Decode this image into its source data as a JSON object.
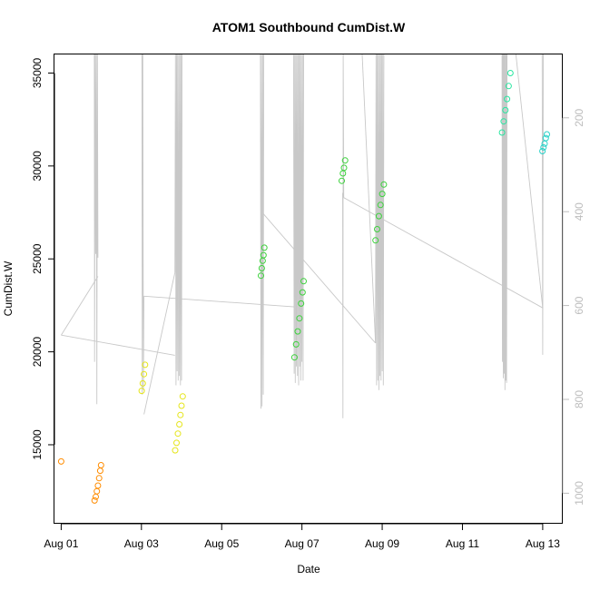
{
  "chart_data": {
    "type": "scatter",
    "title": "ATOM1 Southbound CumDist.W",
    "xlabel": "Date",
    "ylabel": "CumDist.W",
    "x_ticks": [
      "Aug 01",
      "Aug 03",
      "Aug 05",
      "Aug 07",
      "Aug 09",
      "Aug 11",
      "Aug 13"
    ],
    "xlim": [
      "2023-07-31T19:59",
      "2023-08-13T12:00"
    ],
    "ylim": [
      10750,
      36000
    ],
    "y_ticks": [
      15000,
      20000,
      25000,
      30000,
      35000
    ],
    "y2": {
      "ticks": [
        200,
        400,
        600,
        800,
        1000
      ],
      "lim_top": 65,
      "lim_bottom": 1065,
      "inverted": true,
      "color": "#bdbdbd"
    },
    "grid": false,
    "colors": {
      "line": "#c8c8c8",
      "orange": "#ff8c00",
      "yellow": "#e5e51a",
      "green": "#3cd23c",
      "mint": "#28e6a0",
      "cyan": "#28d2c8"
    },
    "series": [
      {
        "color": "orange",
        "x": [
          "2023-08-01T00:00"
        ],
        "y": [
          14100
        ]
      },
      {
        "color": "orange",
        "x": [
          "2023-08-01T20:00",
          "2023-08-01T20:40",
          "2023-08-01T21:20",
          "2023-08-01T22:00",
          "2023-08-01T22:40",
          "2023-08-01T23:20",
          "2023-08-01T23:50"
        ],
        "y": [
          12000,
          12200,
          12500,
          12800,
          13200,
          13600,
          13900
        ]
      },
      {
        "color": "yellow",
        "x": [
          "2023-08-03T00:10",
          "2023-08-03T00:50",
          "2023-08-03T01:30",
          "2023-08-03T02:10"
        ],
        "y": [
          17900,
          18300,
          18800,
          19300
        ]
      },
      {
        "color": "yellow",
        "x": [
          "2023-08-03T20:10",
          "2023-08-03T21:00",
          "2023-08-03T21:50",
          "2023-08-03T22:40",
          "2023-08-03T23:20",
          "2023-08-04T00:00",
          "2023-08-04T00:40"
        ],
        "y": [
          14700,
          15100,
          15600,
          16100,
          16600,
          17100,
          17600
        ]
      },
      {
        "color": "green",
        "x": [
          "2023-08-05T23:30",
          "2023-08-06T00:00",
          "2023-08-06T00:30",
          "2023-08-06T01:00",
          "2023-08-06T01:30"
        ],
        "y": [
          24100,
          24500,
          24900,
          25200,
          25600
        ]
      },
      {
        "color": "green",
        "x": [
          "2023-08-06T19:30",
          "2023-08-06T20:30",
          "2023-08-06T21:30",
          "2023-08-06T22:30",
          "2023-08-06T23:30",
          "2023-08-07T00:20",
          "2023-08-07T01:00"
        ],
        "y": [
          19700,
          20400,
          21100,
          21800,
          22600,
          23200,
          23800
        ]
      },
      {
        "color": "green",
        "x": [
          "2023-08-07T23:50",
          "2023-08-08T00:30",
          "2023-08-08T01:10",
          "2023-08-08T01:50"
        ],
        "y": [
          29200,
          29600,
          29900,
          30300
        ]
      },
      {
        "color": "green",
        "x": [
          "2023-08-08T20:00",
          "2023-08-08T21:00",
          "2023-08-08T22:00",
          "2023-08-08T23:00",
          "2023-08-09T00:00",
          "2023-08-09T01:00"
        ],
        "y": [
          26000,
          26600,
          27300,
          27900,
          28500,
          29000
        ]
      },
      {
        "color": "mint",
        "x": [
          "2023-08-11T23:40",
          "2023-08-12T00:40",
          "2023-08-12T01:40",
          "2023-08-12T02:40",
          "2023-08-12T03:40",
          "2023-08-12T04:40"
        ],
        "y": [
          31800,
          32400,
          33000,
          33600,
          34300,
          35000
        ]
      },
      {
        "color": "cyan",
        "x": [
          "2023-08-12T23:50",
          "2023-08-13T00:30",
          "2023-08-13T01:10",
          "2023-08-13T01:50",
          "2023-08-13T02:30"
        ],
        "y": [
          30800,
          31000,
          31200,
          31500,
          31700
        ]
      }
    ],
    "lines_y2": [
      {
        "x": [
          "2023-08-01T00:00",
          "2023-08-01T22:00"
        ],
        "y": [
          663,
          538
        ]
      },
      {
        "x": [
          "2023-08-01T19:50",
          "2023-08-01T20:00",
          "2023-08-01T20:20",
          "2023-08-01T20:40",
          "2023-08-01T21:00",
          "2023-08-01T21:20",
          "2023-08-01T21:40",
          "2023-08-01T22:00"
        ],
        "y": [
          65,
          720,
          65,
          490,
          65,
          810,
          65,
          498
        ]
      },
      {
        "x": [
          "2023-08-01T00:00",
          "2023-08-03T20:00"
        ],
        "y": [
          663,
          706
        ]
      },
      {
        "x": [
          "2023-08-03T00:20",
          "2023-08-03T00:30",
          "2023-08-03T00:50",
          "2023-08-03T01:10",
          "2023-08-03T01:30"
        ],
        "y": [
          65,
          790,
          65,
          780,
          580
        ]
      },
      {
        "x": [
          "2023-08-03T01:30",
          "2023-08-03T20:00"
        ],
        "y": [
          832,
          530
        ]
      },
      {
        "x": [
          "2023-08-03T20:00",
          "2023-08-03T20:20",
          "2023-08-03T20:40",
          "2023-08-03T21:00",
          "2023-08-03T21:20",
          "2023-08-03T21:40",
          "2023-08-03T22:00",
          "2023-08-03T22:20",
          "2023-08-03T22:40",
          "2023-08-03T23:00",
          "2023-08-03T23:20",
          "2023-08-03T23:40",
          "2023-08-04T00:00",
          "2023-08-04T00:20"
        ],
        "y": [
          530,
          65,
          770,
          65,
          740,
          65,
          760,
          65,
          750,
          65,
          770,
          65,
          760,
          65
        ]
      },
      {
        "x": [
          "2023-08-03T01:30",
          "2023-08-06T19:30"
        ],
        "y": [
          580,
          603
        ]
      },
      {
        "x": [
          "2023-08-05T23:10",
          "2023-08-05T23:30",
          "2023-08-05T23:50",
          "2023-08-06T00:10",
          "2023-08-06T00:30",
          "2023-08-06T00:50",
          "2023-08-06T01:10"
        ],
        "y": [
          65,
          820,
          65,
          815,
          65,
          790,
          65
        ]
      },
      {
        "x": [
          "2023-08-06T00:30",
          "2023-08-08T20:00"
        ],
        "y": [
          403,
          680
        ]
      },
      {
        "x": [
          "2023-08-06T00:30",
          "2023-08-06T19:00"
        ],
        "y": [
          65,
          65
        ]
      },
      {
        "x": [
          "2023-08-06T19:00",
          "2023-08-06T19:20",
          "2023-08-06T19:40",
          "2023-08-06T20:00",
          "2023-08-06T20:20",
          "2023-08-06T20:40",
          "2023-08-06T21:00",
          "2023-08-06T21:20",
          "2023-08-06T21:40",
          "2023-08-06T22:00",
          "2023-08-06T22:20",
          "2023-08-06T22:40",
          "2023-08-06T23:00",
          "2023-08-06T23:20",
          "2023-08-06T23:40",
          "2023-08-07T00:00",
          "2023-08-07T00:20",
          "2023-08-07T00:40",
          "2023-08-07T01:00"
        ],
        "y": [
          65,
          745,
          65,
          765,
          65,
          730,
          65,
          750,
          65,
          770,
          65,
          730,
          65,
          760,
          65,
          720,
          65,
          760,
          65
        ]
      },
      {
        "x": [
          "2023-08-08T00:20",
          "2023-08-08T00:30",
          "2023-08-08T00:40",
          "2023-08-08T01:00"
        ],
        "y": [
          360,
          840,
          65,
          370
        ]
      },
      {
        "x": [
          "2023-08-08T01:00",
          "2023-08-13T00:00"
        ],
        "y": [
          370,
          605
        ]
      },
      {
        "x": [
          "2023-08-08T12:00",
          "2023-08-08T20:00"
        ],
        "y": [
          65,
          680
        ]
      },
      {
        "x": [
          "2023-08-08T20:00",
          "2023-08-08T20:20",
          "2023-08-08T20:40",
          "2023-08-08T21:00",
          "2023-08-08T21:20",
          "2023-08-08T21:40",
          "2023-08-08T22:00",
          "2023-08-08T22:20",
          "2023-08-08T22:40",
          "2023-08-08T23:00",
          "2023-08-08T23:20",
          "2023-08-08T23:40",
          "2023-08-09T00:00",
          "2023-08-09T00:20",
          "2023-08-09T00:40",
          "2023-08-09T01:00"
        ],
        "y": [
          680,
          65,
          770,
          65,
          760,
          65,
          780,
          65,
          750,
          65,
          760,
          65,
          740,
          65,
          770,
          65
        ]
      },
      {
        "x": [
          "2023-08-11T23:40",
          "2023-08-11T23:55",
          "2023-08-12T00:10",
          "2023-08-12T00:25",
          "2023-08-12T00:40",
          "2023-08-12T00:55",
          "2023-08-12T01:10",
          "2023-08-12T01:25",
          "2023-08-12T01:40",
          "2023-08-12T01:55",
          "2023-08-12T02:10",
          "2023-08-12T02:25",
          "2023-08-12T02:40"
        ],
        "y": [
          65,
          720,
          65,
          755,
          65,
          745,
          65,
          780,
          65,
          760,
          65,
          765,
          65
        ]
      },
      {
        "x": [
          "2023-08-12T08:00",
          "2023-08-13T00:00"
        ],
        "y": [
          65,
          605
        ]
      },
      {
        "x": [
          "2023-08-12T23:40",
          "2023-08-13T00:00",
          "2023-08-13T00:20"
        ],
        "y": [
          65,
          705,
          65
        ]
      }
    ]
  }
}
